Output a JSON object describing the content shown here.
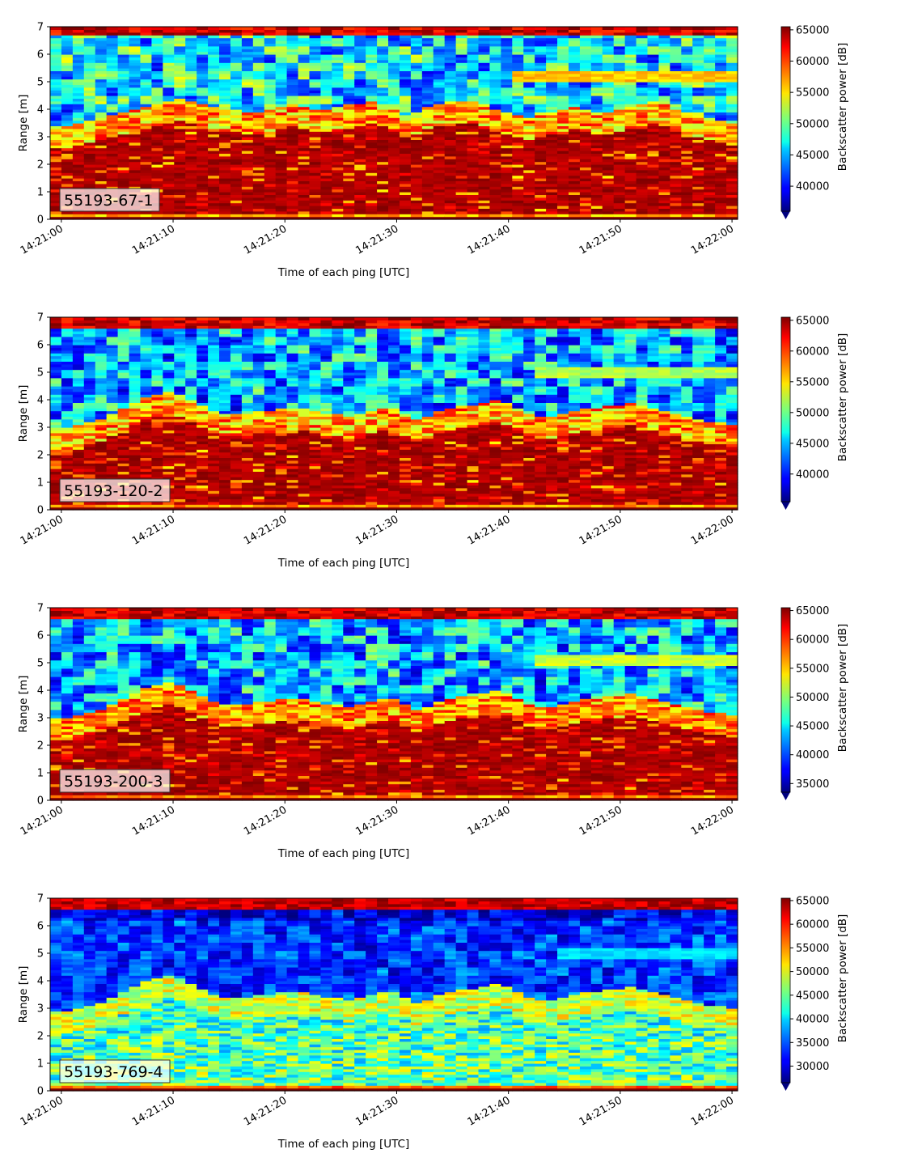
{
  "chart_data": [
    {
      "type": "heatmap",
      "label": "55193-67-1",
      "xlabel": "Time of each ping [UTC]",
      "ylabel": "Range [m]",
      "xticks": [
        "14:21:00",
        "14:21:10",
        "14:21:20",
        "14:21:30",
        "14:21:40",
        "14:21:50",
        "14:22:00"
      ],
      "xlim_seconds": [
        -1,
        60.5
      ],
      "ylim": [
        0,
        7
      ],
      "yticks": [
        "0",
        "1",
        "2",
        "3",
        "4",
        "5",
        "6",
        "7"
      ],
      "colorbar": {
        "label": "Backscatter power [dB]",
        "colormap": "jet",
        "range": [
          36000,
          65500
        ],
        "ticks": [
          "40000",
          "45000",
          "50000",
          "55000",
          "60000",
          "65000"
        ],
        "extend": "min"
      },
      "profile": {
        "surface_band_top_m": 6.75,
        "strong_layer_top_m": [
          3.0,
          3.0,
          3.1,
          3.2,
          3.3,
          3.4,
          3.5,
          3.6,
          3.7,
          3.8,
          3.9,
          4.0,
          3.9,
          3.8,
          3.7,
          3.6,
          3.6,
          3.5,
          3.5,
          3.6,
          3.7,
          3.8,
          3.7,
          3.6,
          3.6,
          3.7,
          3.8,
          3.8,
          3.9,
          3.8,
          3.6,
          3.4,
          3.5,
          3.7,
          3.8,
          3.9,
          3.9,
          3.9,
          3.8,
          3.6,
          3.5,
          3.4,
          3.3,
          3.4,
          3.5,
          3.6,
          3.7,
          3.6,
          3.5,
          3.5,
          3.6,
          3.7,
          3.8,
          3.9,
          3.8,
          3.6,
          3.5,
          3.4,
          3.3,
          3.2,
          3.1
        ],
        "mid_layer_height_m": 5.2,
        "mid_layer_start_s": 40,
        "mid_layer_power": 56000,
        "noise_power_mean": 46500,
        "noise_power_spread": 6500,
        "seed": 11
      }
    },
    {
      "type": "heatmap",
      "label": "55193-120-2",
      "xlabel": "Time of each ping [UTC]",
      "ylabel": "Range [m]",
      "xticks": [
        "14:21:00",
        "14:21:10",
        "14:21:20",
        "14:21:30",
        "14:21:40",
        "14:21:50",
        "14:22:00"
      ],
      "xlim_seconds": [
        -1,
        60.5
      ],
      "ylim": [
        0,
        7
      ],
      "yticks": [
        "0",
        "1",
        "2",
        "3",
        "4",
        "5",
        "6",
        "7"
      ],
      "colorbar": {
        "label": "Backscatter power [dB]",
        "colormap": "jet",
        "range": [
          35500,
          65500
        ],
        "ticks": [
          "40000",
          "45000",
          "50000",
          "55000",
          "60000",
          "65000"
        ],
        "extend": "min"
      },
      "profile": {
        "surface_band_top_m": 6.65,
        "strong_layer_top_m": [
          2.6,
          2.6,
          2.7,
          2.8,
          2.9,
          3.1,
          3.3,
          3.5,
          3.7,
          3.8,
          3.9,
          3.8,
          3.6,
          3.4,
          3.2,
          3.1,
          3.1,
          3.1,
          3.2,
          3.2,
          3.3,
          3.3,
          3.3,
          3.2,
          3.1,
          3.1,
          3.0,
          3.1,
          3.2,
          3.3,
          3.3,
          3.1,
          2.9,
          3.0,
          3.2,
          3.3,
          3.4,
          3.4,
          3.5,
          3.6,
          3.5,
          3.3,
          3.1,
          3.0,
          3.0,
          3.1,
          3.2,
          3.3,
          3.3,
          3.4,
          3.4,
          3.5,
          3.4,
          3.3,
          3.2,
          3.1,
          3.0,
          2.9,
          2.8,
          2.8,
          2.7
        ],
        "mid_layer_height_m": 5.0,
        "mid_layer_start_s": 42,
        "mid_layer_power": 52000,
        "noise_power_mean": 44500,
        "noise_power_spread": 6000,
        "seed": 23
      }
    },
    {
      "type": "heatmap",
      "label": "55193-200-3",
      "xlabel": "Time of each ping [UTC]",
      "ylabel": "Range [m]",
      "xticks": [
        "14:21:00",
        "14:21:10",
        "14:21:20",
        "14:21:30",
        "14:21:40",
        "14:21:50",
        "14:22:00"
      ],
      "xlim_seconds": [
        -1,
        60.5
      ],
      "ylim": [
        0,
        7
      ],
      "yticks": [
        "0",
        "1",
        "2",
        "3",
        "4",
        "5",
        "6",
        "7"
      ],
      "colorbar": {
        "label": "Backscatter power [dB]",
        "colormap": "jet",
        "range": [
          33500,
          65500
        ],
        "ticks": [
          "35000",
          "40000",
          "45000",
          "50000",
          "55000",
          "60000",
          "65000"
        ],
        "extend": "min"
      },
      "profile": {
        "surface_band_top_m": 6.6,
        "strong_layer_top_m": [
          2.6,
          2.6,
          2.7,
          2.8,
          2.9,
          3.1,
          3.3,
          3.5,
          3.7,
          3.8,
          3.9,
          3.8,
          3.6,
          3.4,
          3.2,
          3.1,
          3.1,
          3.1,
          3.2,
          3.2,
          3.3,
          3.3,
          3.3,
          3.2,
          3.1,
          3.1,
          3.0,
          3.1,
          3.2,
          3.3,
          3.3,
          3.1,
          2.9,
          3.0,
          3.2,
          3.3,
          3.4,
          3.4,
          3.5,
          3.6,
          3.5,
          3.3,
          3.1,
          3.0,
          3.0,
          3.1,
          3.2,
          3.3,
          3.3,
          3.4,
          3.4,
          3.5,
          3.4,
          3.3,
          3.2,
          3.1,
          3.0,
          2.9,
          2.8,
          2.8,
          2.7
        ],
        "mid_layer_height_m": 5.1,
        "mid_layer_start_s": 42,
        "mid_layer_power": 52000,
        "noise_power_mean": 43000,
        "noise_power_spread": 6500,
        "seed": 37
      }
    },
    {
      "type": "heatmap",
      "label": "55193-769-4",
      "xlabel": "Time of each ping [UTC]",
      "ylabel": "Range [m]",
      "xticks": [
        "14:21:00",
        "14:21:10",
        "14:21:20",
        "14:21:30",
        "14:21:40",
        "14:21:50",
        "14:22:00"
      ],
      "xlim_seconds": [
        -1,
        60.5
      ],
      "ylim": [
        0,
        7
      ],
      "yticks": [
        "0",
        "1",
        "2",
        "3",
        "4",
        "5",
        "6",
        "7"
      ],
      "colorbar": {
        "label": "Backscatter power [dB]",
        "colormap": "jet",
        "range": [
          26500,
          65500
        ],
        "ticks": [
          "30000",
          "35000",
          "40000",
          "45000",
          "50000",
          "55000",
          "60000",
          "65000"
        ],
        "extend": "min"
      },
      "profile": {
        "surface_band_top_m": 6.6,
        "strong_layer_top_m": [
          2.5,
          2.5,
          2.6,
          2.7,
          2.8,
          3.0,
          3.2,
          3.4,
          3.6,
          3.7,
          3.8,
          3.7,
          3.5,
          3.3,
          3.1,
          3.0,
          3.0,
          3.0,
          3.1,
          3.1,
          3.2,
          3.2,
          3.2,
          3.1,
          3.0,
          3.0,
          2.9,
          3.0,
          3.1,
          3.2,
          3.2,
          3.0,
          2.8,
          2.9,
          3.1,
          3.2,
          3.3,
          3.3,
          3.4,
          3.5,
          3.4,
          3.2,
          3.0,
          2.9,
          2.9,
          3.0,
          3.1,
          3.2,
          3.2,
          3.3,
          3.3,
          3.4,
          3.3,
          3.2,
          3.1,
          3.0,
          2.9,
          2.8,
          2.7,
          2.7,
          2.6
        ],
        "mid_layer_height_m": 5.0,
        "mid_layer_start_s": 44,
        "mid_layer_power": 40000,
        "noise_power_mean": 33500,
        "noise_power_spread": 4500,
        "seed": 53
      }
    }
  ]
}
